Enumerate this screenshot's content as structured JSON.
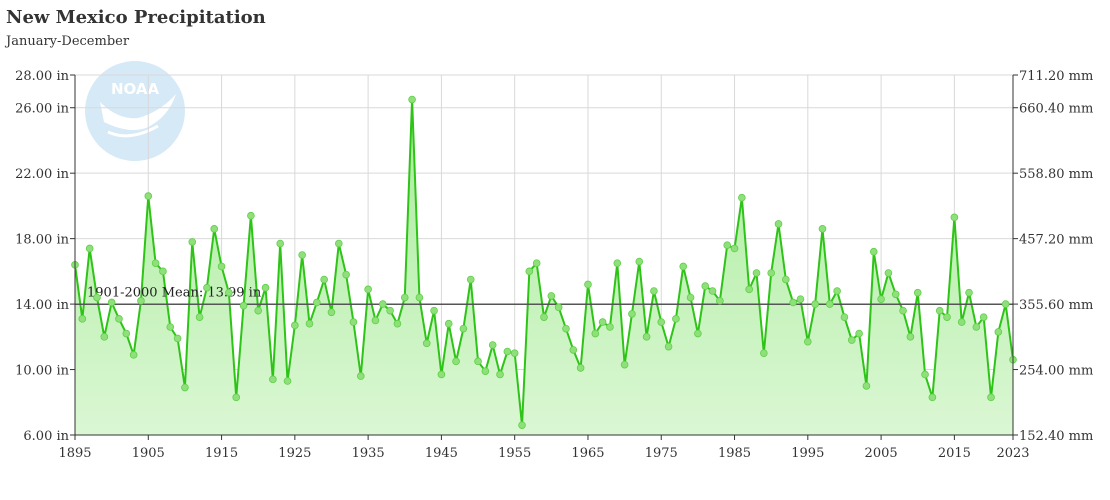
{
  "header": {
    "title": "New Mexico Precipitation",
    "subtitle": "January-December"
  },
  "colors": {
    "line": "#2ec417",
    "point": "#8fe07b",
    "fill_top": "#a8ec9a",
    "fill_bottom": "#dbf7d4",
    "mean_line": "#555555",
    "grid": "#d9d9d9",
    "logo": "#d6e9f6"
  },
  "logo": {
    "icon": "noaa-logo",
    "text": "NOAA"
  },
  "chart_data": {
    "type": "area",
    "title": "New Mexico Precipitation",
    "subtitle": "January-December",
    "xlabel": "",
    "ylabel": "",
    "xlim": [
      1895,
      2023
    ],
    "ylim": [
      6,
      28
    ],
    "x_ticks": [
      "1895",
      "1905",
      "1915",
      "1925",
      "1935",
      "1945",
      "1955",
      "1965",
      "1975",
      "1985",
      "1995",
      "2005",
      "2015",
      "2023"
    ],
    "y_ticks_left": [
      "6.00 in",
      "10.00 in",
      "14.00 in",
      "18.00 in",
      "22.00 in",
      "26.00 in",
      "28.00 in"
    ],
    "y_ticks_right": [
      "152.40 mm",
      "254.00 mm",
      "355.60 mm",
      "457.20 mm",
      "558.80 mm",
      "660.40 mm",
      "711.20 mm"
    ],
    "grid": true,
    "mean": {
      "value": 13.99,
      "label": "1901-2000 Mean: 13.99 in"
    },
    "series": [
      {
        "x": [
          1895,
          1896,
          1897,
          1898,
          1899,
          1900,
          1901,
          1902,
          1903,
          1904,
          1905,
          1906,
          1907,
          1908,
          1909,
          1910,
          1911,
          1912,
          1913,
          1914,
          1915,
          1916,
          1917,
          1918,
          1919,
          1920,
          1921,
          1922,
          1923,
          1924,
          1925,
          1926,
          1927,
          1928,
          1929,
          1930,
          1931,
          1932,
          1933,
          1934,
          1935,
          1936,
          1937,
          1938,
          1939,
          1940,
          1941,
          1942,
          1943,
          1944,
          1945,
          1946,
          1947,
          1948,
          1949,
          1950,
          1951,
          1952,
          1953,
          1954,
          1955,
          1956,
          1957,
          1958,
          1959,
          1960,
          1961,
          1962,
          1963,
          1964,
          1965,
          1966,
          1967,
          1968,
          1969,
          1970,
          1971,
          1972,
          1973,
          1974,
          1975,
          1976,
          1977,
          1978,
          1979,
          1980,
          1981,
          1982,
          1983,
          1984,
          1985,
          1986,
          1987,
          1988,
          1989,
          1990,
          1991,
          1992,
          1993,
          1994,
          1995,
          1996,
          1997,
          1998,
          1999,
          2000,
          2001,
          2002,
          2003,
          2004,
          2005,
          2006,
          2007,
          2008,
          2009,
          2010,
          2011,
          2012,
          2013,
          2014,
          2015,
          2016,
          2017,
          2018,
          2019,
          2020,
          2021,
          2022,
          2023
        ],
        "y": [
          16.4,
          13.1,
          17.4,
          14.4,
          12.0,
          14.1,
          13.1,
          12.2,
          10.9,
          14.2,
          20.6,
          16.5,
          16.0,
          12.6,
          11.9,
          8.9,
          17.8,
          13.2,
          15.0,
          18.6,
          16.3,
          14.7,
          8.3,
          13.9,
          19.4,
          13.6,
          15.0,
          9.4,
          17.7,
          9.3,
          12.7,
          17.0,
          12.8,
          14.1,
          15.5,
          13.5,
          17.7,
          15.8,
          12.9,
          9.6,
          14.9,
          13.0,
          14.0,
          13.6,
          12.8,
          14.4,
          26.5,
          14.4,
          11.6,
          13.6,
          9.7,
          12.8,
          10.5,
          12.5,
          15.5,
          10.5,
          9.9,
          11.5,
          9.7,
          11.1,
          11.0,
          6.6,
          16.0,
          16.5,
          13.2,
          14.5,
          13.8,
          12.5,
          11.2,
          10.1,
          15.2,
          12.2,
          12.9,
          12.6,
          16.5,
          10.3,
          13.4,
          16.6,
          12.0,
          14.8,
          12.9,
          11.4,
          13.1,
          16.3,
          14.4,
          12.2,
          15.1,
          14.8,
          14.2,
          17.6,
          17.4,
          20.5,
          14.9,
          15.9,
          11.0,
          15.9,
          18.9,
          15.5,
          14.1,
          14.3,
          11.7,
          14.0,
          18.6,
          14.0,
          14.8,
          13.2,
          11.8,
          12.2,
          9.0,
          17.2,
          14.3,
          15.9,
          14.6,
          13.6,
          12.0,
          14.7,
          9.7,
          8.3,
          13.6,
          13.2,
          19.3,
          12.9,
          14.7,
          12.6,
          13.2,
          8.3,
          12.3,
          14.0,
          10.6
        ]
      }
    ]
  }
}
